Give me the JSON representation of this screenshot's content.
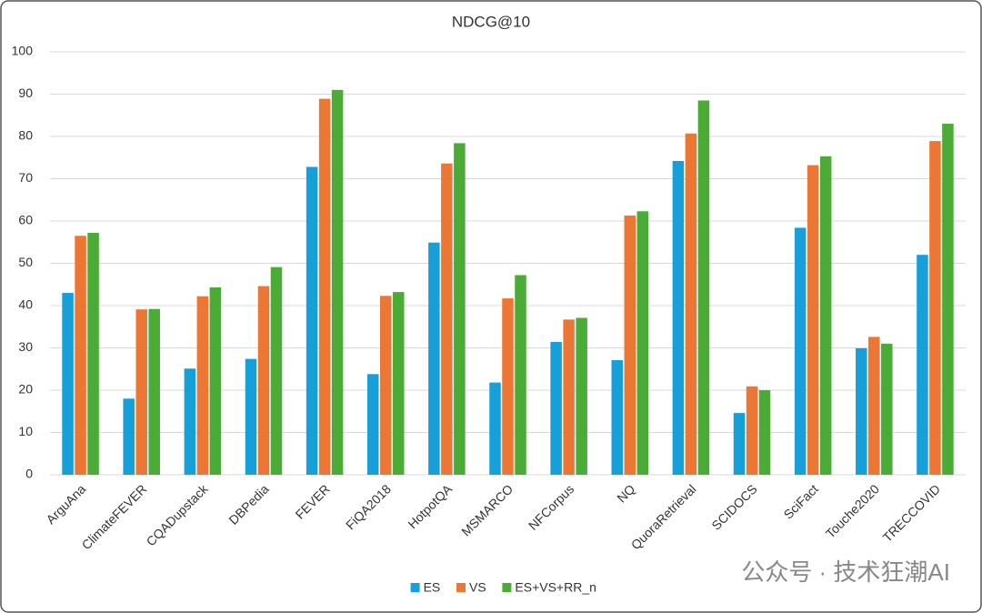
{
  "chart_data": {
    "type": "bar",
    "title": "NDCG@10",
    "categories": [
      "ArguAna",
      "ClimateFEVER",
      "CQADupstack",
      "DBPedia",
      "FEVER",
      "FiQA2018",
      "HotpotQA",
      "MSMARCO",
      "NFCorpus",
      "NQ",
      "QuoraRetrieval",
      "SCIDOCS",
      "SciFact",
      "Touche2020",
      "TRECCOVID"
    ],
    "series": [
      {
        "name": "ES",
        "color": "#179fd9",
        "values": [
          43,
          18,
          25.1,
          27.4,
          72.8,
          23.8,
          54.9,
          21.8,
          31.4,
          27.1,
          74.2,
          14.6,
          58.4,
          29.9,
          52
        ]
      },
      {
        "name": "VS",
        "color": "#ec7634",
        "values": [
          56.5,
          39.1,
          42.2,
          44.6,
          88.9,
          42.3,
          73.6,
          41.7,
          36.7,
          61.3,
          80.7,
          20.9,
          73.2,
          32.6,
          78.9
        ]
      },
      {
        "name": "ES+VS+RR_n",
        "color": "#4aab37",
        "values": [
          57.2,
          39.2,
          44.3,
          49.1,
          91,
          43.2,
          78.4,
          47.2,
          37.1,
          62.3,
          88.5,
          20,
          75.3,
          31,
          83
        ]
      }
    ],
    "ylim": [
      0,
      100
    ],
    "yticks": [
      0,
      10,
      20,
      30,
      40,
      50,
      60,
      70,
      80,
      90,
      100
    ],
    "grid": true,
    "legend": "bottom"
  },
  "watermark": "公众号 · 技术狂潮AI"
}
